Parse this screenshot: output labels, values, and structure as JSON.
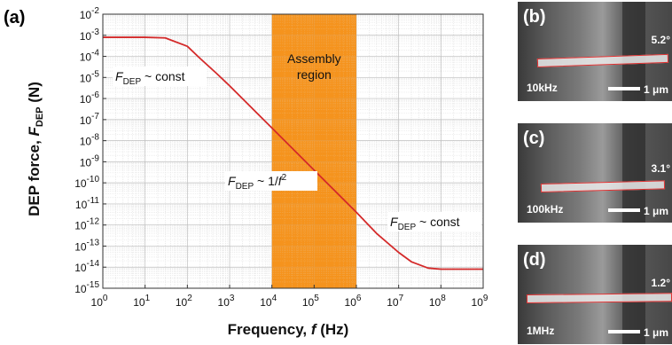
{
  "figure_label": "(a)",
  "chart_data": {
    "type": "line",
    "xlabel_main": "Frequency, ",
    "xlabel_symbol": "f",
    "xlabel_unit": " (Hz)",
    "ylabel_main": "DEP force, ",
    "ylabel_symbol": "F",
    "ylabel_sub": "DEP",
    "ylabel_unit": " (N)",
    "x_scale": "log",
    "y_scale": "log",
    "xlim": [
      1,
      1000000000
    ],
    "ylim": [
      1e-15,
      0.01
    ],
    "x_ticks": [
      {
        "b": "10",
        "e": "0"
      },
      {
        "b": "10",
        "e": "1"
      },
      {
        "b": "10",
        "e": "2"
      },
      {
        "b": "10",
        "e": "3"
      },
      {
        "b": "10",
        "e": "4"
      },
      {
        "b": "10",
        "e": "5"
      },
      {
        "b": "10",
        "e": "6"
      },
      {
        "b": "10",
        "e": "7"
      },
      {
        "b": "10",
        "e": "8"
      },
      {
        "b": "10",
        "e": "9"
      }
    ],
    "y_ticks": [
      {
        "b": "10",
        "e": "-15"
      },
      {
        "b": "10",
        "e": "-14"
      },
      {
        "b": "10",
        "e": "-13"
      },
      {
        "b": "10",
        "e": "-12"
      },
      {
        "b": "10",
        "e": "-11"
      },
      {
        "b": "10",
        "e": "-10"
      },
      {
        "b": "10",
        "e": "-9"
      },
      {
        "b": "10",
        "e": "-8"
      },
      {
        "b": "10",
        "e": "-7"
      },
      {
        "b": "10",
        "e": "-6"
      },
      {
        "b": "10",
        "e": "-5"
      },
      {
        "b": "10",
        "e": "-4"
      },
      {
        "b": "10",
        "e": "-3"
      },
      {
        "b": "10",
        "e": "-2"
      }
    ],
    "grid": true,
    "series": [
      {
        "color": "#d42a2a",
        "x": [
          1,
          10,
          30,
          100,
          200,
          500,
          1000,
          10000,
          100000,
          1000000,
          3000000,
          10000000,
          20000000,
          50000000,
          100000000,
          1000000000
        ],
        "y": [
          0.0008,
          0.0008,
          0.00075,
          0.0003,
          8e-05,
          1.5e-05,
          4e-06,
          4e-08,
          4e-10,
          4e-12,
          4e-13,
          5e-14,
          1.8e-14,
          9e-15,
          8e-15,
          8e-15
        ]
      }
    ],
    "shaded_region": {
      "x_from": 10000,
      "x_to": 1000000,
      "color": "#f5931e",
      "label_line1": "Assembly",
      "label_line2": "region"
    },
    "annotations": [
      {
        "F": "F",
        "sub": "DEP",
        "rest": " ~ const",
        "power": ""
      },
      {
        "F": "F",
        "sub": "DEP",
        "rest": " ~ 1/",
        "italic": "f",
        "power": "2"
      },
      {
        "F": "F",
        "sub": "DEP",
        "rest": " ~ const",
        "power": ""
      }
    ]
  },
  "micrographs": [
    {
      "label": "(b)",
      "freq": "10kHz",
      "angle": "5.2°",
      "scale": "1 μm"
    },
    {
      "label": "(c)",
      "freq": "100kHz",
      "angle": "3.1°",
      "scale": "1 μm"
    },
    {
      "label": "(d)",
      "freq": "1MHz",
      "angle": "1.2°",
      "scale": "1 μm"
    }
  ]
}
